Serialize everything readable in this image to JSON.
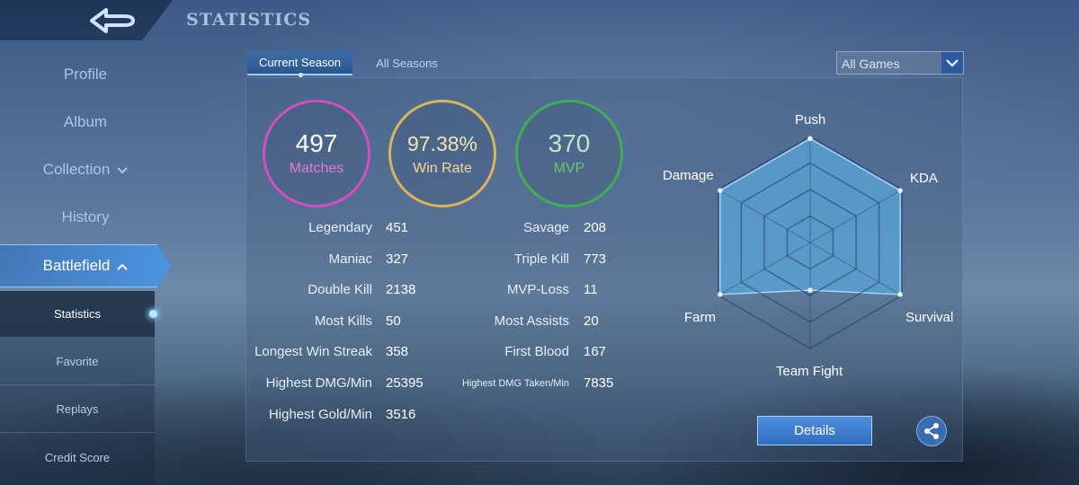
{
  "header": {
    "title": "STATISTICS",
    "back_icon": "back-arrow-icon"
  },
  "sidebar": {
    "items": [
      {
        "label": "Profile"
      },
      {
        "label": "Album"
      },
      {
        "label": "Collection"
      },
      {
        "label": "History"
      },
      {
        "label": "Battlefield"
      }
    ],
    "sub_items": [
      {
        "label": "Statistics",
        "active": true
      },
      {
        "label": "Favorite"
      },
      {
        "label": "Replays"
      },
      {
        "label": "Credit Score"
      }
    ]
  },
  "tabs": [
    {
      "label": "Current Season",
      "active": true
    },
    {
      "label": "All Seasons"
    }
  ],
  "filter": {
    "selected": "All Games"
  },
  "summary": {
    "matches": {
      "value": "497",
      "label": "Matches",
      "color": "#d24fc0"
    },
    "win_rate": {
      "value": "97.38%",
      "label": "Win Rate",
      "color": "#d8b45a"
    },
    "mvp": {
      "value": "370",
      "label": "MVP",
      "color": "#3fae55"
    }
  },
  "stats_left": [
    {
      "label": "Legendary",
      "value": "451"
    },
    {
      "label": "Maniac",
      "value": "327"
    },
    {
      "label": "Double Kill",
      "value": "2138"
    },
    {
      "label": "Most Kills",
      "value": "50"
    },
    {
      "label": "Longest Win Streak",
      "value": "358"
    },
    {
      "label": "Highest DMG/Min",
      "value": "25395"
    },
    {
      "label": "Highest Gold/Min",
      "value": "3516"
    }
  ],
  "stats_right": [
    {
      "label": "Savage",
      "value": "208"
    },
    {
      "label": "Triple Kill",
      "value": "773"
    },
    {
      "label": "MVP-Loss",
      "value": "11"
    },
    {
      "label": "Most Assists",
      "value": "20"
    },
    {
      "label": "First Blood",
      "value": "167"
    },
    {
      "label": "Highest DMG Taken/Min",
      "value": "7835"
    }
  ],
  "radar": {
    "axes": [
      "Push",
      "KDA",
      "Survival",
      "Team Fight",
      "Farm",
      "Damage"
    ],
    "levels": [
      0.98,
      0.98,
      0.98,
      0.45,
      0.98,
      0.98
    ],
    "fill_color": "#59a6d8"
  },
  "buttons": {
    "details": "Details",
    "share_icon": "share-icon"
  }
}
